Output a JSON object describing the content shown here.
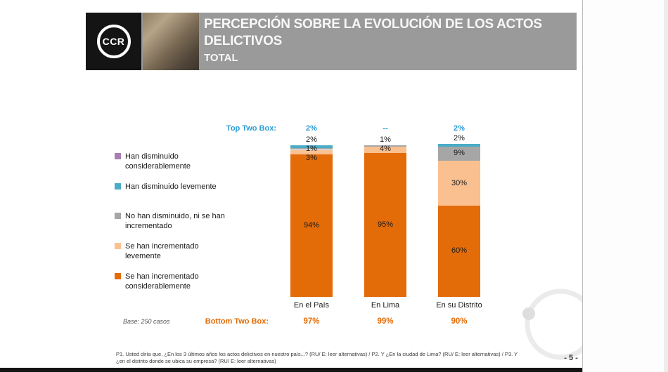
{
  "window": {
    "page_number": "- 5 -"
  },
  "header": {
    "logo_text": "CCR",
    "title_line1": "PERCEPCIÓN SOBRE LA EVOLUCIÓN DE LOS ACTOS",
    "title_line2": "DELICTIVOS",
    "subtitle": "TOTAL"
  },
  "chart_data": {
    "type": "bar",
    "stacked": true,
    "unit": "%",
    "categories": [
      "En el País",
      "En Lima",
      "En su Distrito"
    ],
    "series": [
      {
        "name": "Han disminuido considerablemente",
        "color": "#a77fb4",
        "values": [
          0,
          0,
          0
        ]
      },
      {
        "name": "Han disminuido levemente",
        "color": "#4bacc6",
        "values": [
          2,
          0,
          2
        ]
      },
      {
        "name": "No han disminuido, ni se han incrementado",
        "color": "#a6a6a6",
        "values": [
          1,
          1,
          9
        ]
      },
      {
        "name": "Se han incrementado levemente",
        "color": "#fac090",
        "values": [
          3,
          4,
          30
        ]
      },
      {
        "name": "Se han incrementado considerablemente",
        "color": "#e36c09",
        "values": [
          94,
          95,
          60
        ]
      }
    ],
    "top_two_box": {
      "label": "Top Two Box:",
      "values": [
        "2%",
        "--",
        "2%"
      ],
      "color": "#2e9bd5"
    },
    "bottom_two_box": {
      "label": "Bottom Two Box:",
      "values": [
        "97%",
        "99%",
        "90%"
      ],
      "color": "#e36c09"
    },
    "base_note": "Base: 250 casos",
    "ylim": [
      0,
      100
    ],
    "legend_position": "left",
    "grid": false
  },
  "footnote": {
    "line1": "P1. Usted diría que, ¿En los 3 últimos años los actos delictivos en nuestro país...? (RU/ E: leer alternativas) / P2. Y ¿En la ciudad de Lima?   (RU/ E: leer alternativas) / P3. Y",
    "line2": "¿en el distrito donde se ubica su empresa?   (RU/ E: leer alternativas)"
  }
}
